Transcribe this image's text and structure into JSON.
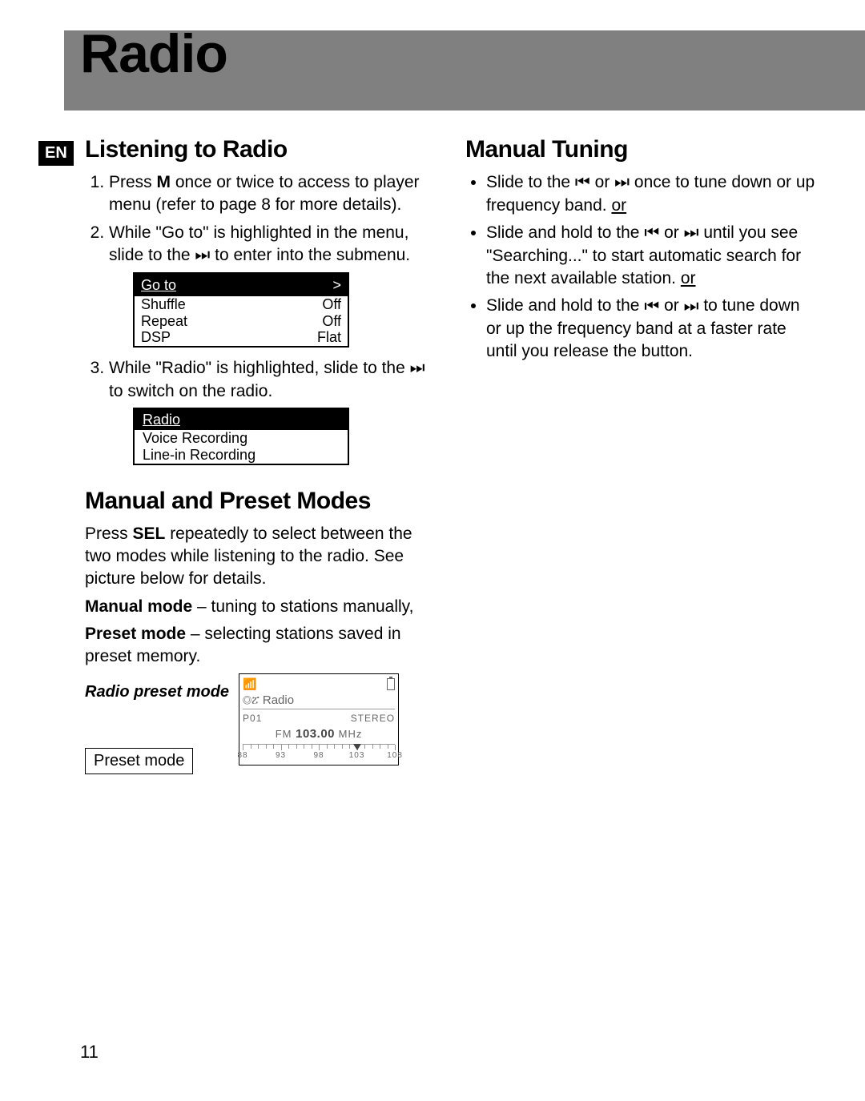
{
  "header": {
    "title": "Radio",
    "lang_badge": "EN"
  },
  "page_number": "11",
  "left": {
    "h1": "Listening to Radio",
    "step1_a": "Press ",
    "step1_m": "M",
    "step1_b": " once or twice to access to player menu (refer to page 8 for more details).",
    "step2_a": "While \"Go to\" is highlighted in the menu, slide to the ",
    "step2_b": " to enter into the submenu.",
    "menu1": {
      "header_left": "Go to",
      "header_right": ">",
      "rows": [
        {
          "l": "Shuffle",
          "r": "Off"
        },
        {
          "l": "Repeat",
          "r": "Off"
        },
        {
          "l": "DSP",
          "r": "Flat"
        }
      ]
    },
    "step3_a": "While \"Radio\" is highlighted, slide to the ",
    "step3_b": " to switch on the radio.",
    "menu2": {
      "header": "Radio",
      "items": [
        "Voice Recording",
        "Line-in Recording"
      ]
    },
    "h2": "Manual and Preset Modes",
    "para1_a": "Press ",
    "para1_sel": "SEL",
    "para1_b": " repeatedly to select between the two modes while listening to the radio. See picture below for details.",
    "manual_label": "Manual mode",
    "manual_text": " – tuning to stations manually,",
    "preset_label": "Preset mode",
    "preset_text": " – selecting stations saved in preset memory.",
    "preset_caption": "Radio preset mode",
    "preset_box_label": "Preset mode",
    "screen": {
      "radio": "Radio",
      "p01": "P01",
      "stereo": "STEREO",
      "fm": "FM",
      "freq": "103.00",
      "mhz": "MHz",
      "ticks": [
        {
          "v": "88",
          "pct": 0
        },
        {
          "v": "93",
          "pct": 25
        },
        {
          "v": "98",
          "pct": 50
        },
        {
          "v": "103",
          "pct": 75
        },
        {
          "v": "108",
          "pct": 100
        }
      ],
      "marker_pct": 75
    }
  },
  "right": {
    "h1": "Manual Tuning",
    "b1_a": "Slide to the ",
    "b1_b": " or ",
    "b1_c": " once to tune down or up frequency band. ",
    "b1_or": "or",
    "b2_a": "Slide and hold to the ",
    "b2_b": " or ",
    "b2_c": " until you see \"Searching...\" to start automatic search for the next available station. ",
    "b2_or": "or",
    "b3_a": "Slide and hold to the ",
    "b3_b": " or ",
    "b3_c": " to tune down or up the frequency band at a faster rate until you release the button."
  },
  "icons": {
    "prev": "⏮",
    "next": "⏭"
  }
}
